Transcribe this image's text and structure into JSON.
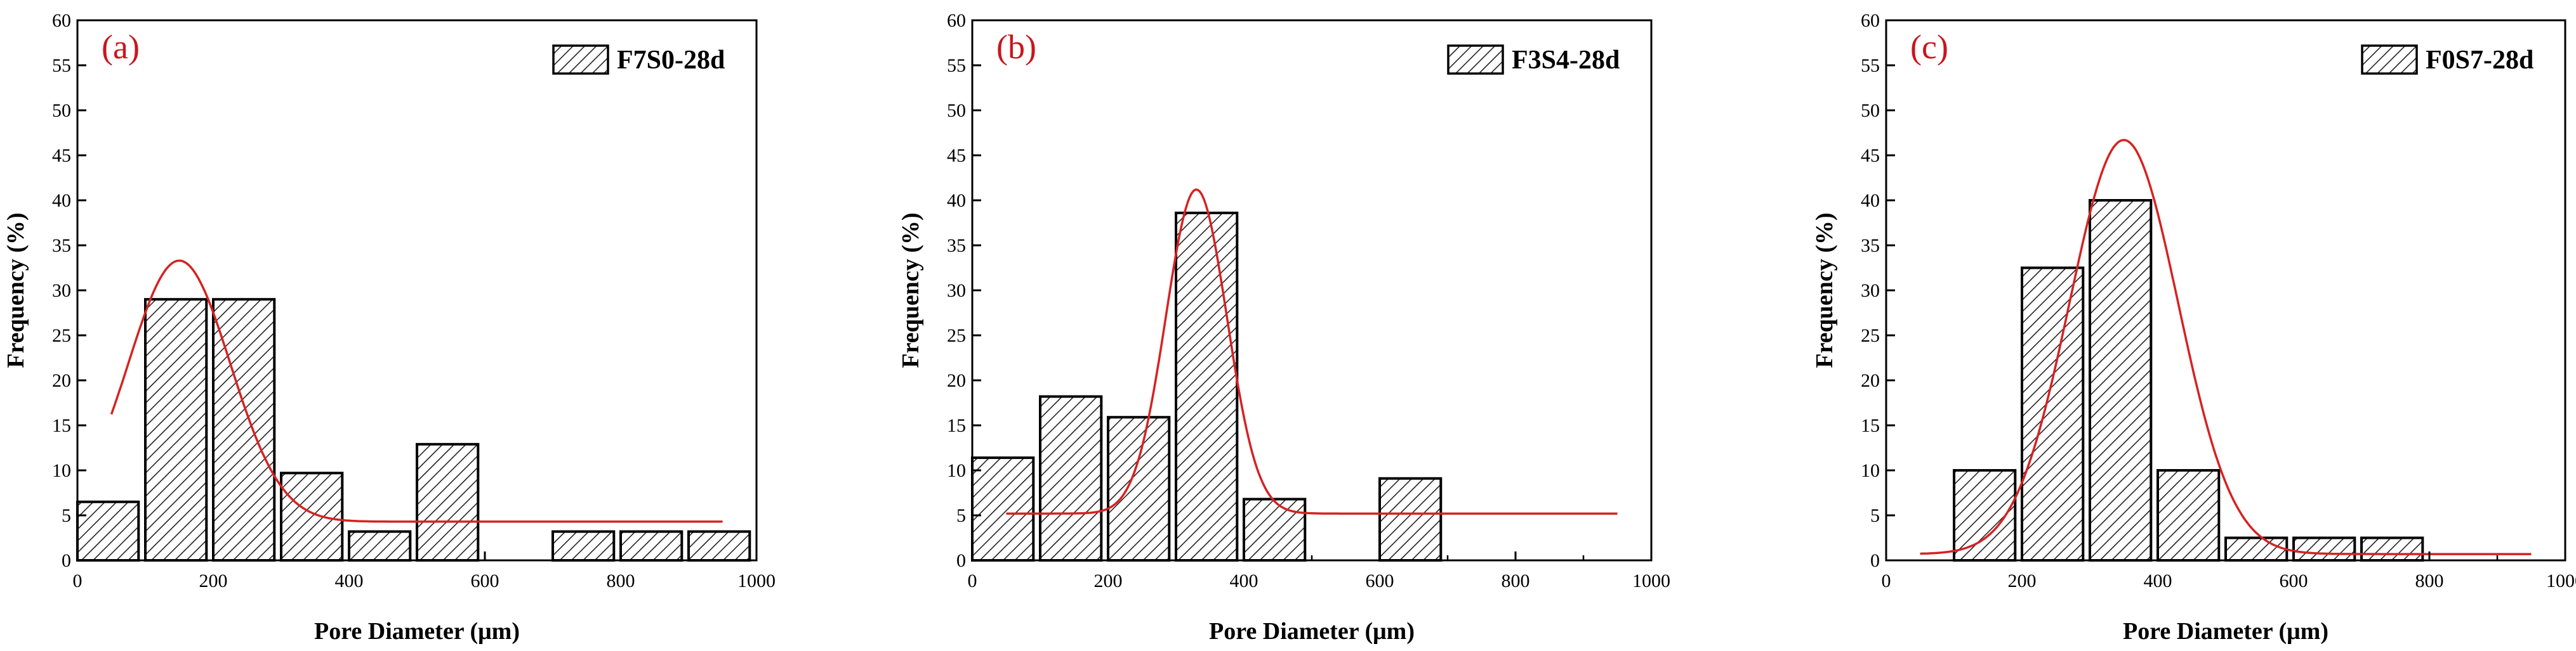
{
  "chart_data": [
    {
      "type": "bar",
      "panel_label": "(a)",
      "legend": "F7S0-28d",
      "xlabel": "Pore Diameter (μm)",
      "ylabel": "Frequency (%)",
      "xlim": [
        0,
        1000
      ],
      "ylim": [
        0,
        60
      ],
      "xticks": [
        0,
        200,
        400,
        600,
        800,
        1000
      ],
      "yticks": [
        0,
        5,
        10,
        15,
        20,
        25,
        30,
        35,
        40,
        45,
        50,
        55,
        60
      ],
      "bins": [
        {
          "start": 0,
          "end": 90,
          "value": 6.5
        },
        {
          "start": 100,
          "end": 190,
          "value": 29.0
        },
        {
          "start": 200,
          "end": 290,
          "value": 29.0
        },
        {
          "start": 300,
          "end": 390,
          "value": 9.7
        },
        {
          "start": 400,
          "end": 490,
          "value": 3.2
        },
        {
          "start": 500,
          "end": 590,
          "value": 12.9
        },
        {
          "start": 700,
          "end": 790,
          "value": 3.2
        },
        {
          "start": 800,
          "end": 890,
          "value": 3.2
        },
        {
          "start": 900,
          "end": 990,
          "value": 3.2
        }
      ],
      "fit": {
        "y0": 4.3,
        "A": 29.0,
        "xc": 150,
        "w": 150,
        "xmin": 50,
        "xmax": 950
      }
    },
    {
      "type": "bar",
      "panel_label": "(b)",
      "legend": "F3S4-28d",
      "xlabel": "Pore Diameter (μm)",
      "ylabel": "Frequency (%)",
      "xlim": [
        0,
        1000
      ],
      "ylim": [
        0,
        60
      ],
      "xticks": [
        0,
        200,
        400,
        600,
        800,
        1000
      ],
      "yticks": [
        0,
        5,
        10,
        15,
        20,
        25,
        30,
        35,
        40,
        45,
        50,
        55,
        60
      ],
      "bins": [
        {
          "start": 0,
          "end": 90,
          "value": 11.4
        },
        {
          "start": 100,
          "end": 190,
          "value": 18.2
        },
        {
          "start": 200,
          "end": 290,
          "value": 15.9
        },
        {
          "start": 300,
          "end": 390,
          "value": 38.6
        },
        {
          "start": 400,
          "end": 490,
          "value": 6.8
        },
        {
          "start": 600,
          "end": 690,
          "value": 9.1
        }
      ],
      "fit": {
        "y0": 5.2,
        "A": 36.0,
        "xc": 330,
        "w": 90,
        "xmin": 50,
        "xmax": 950
      }
    },
    {
      "type": "bar",
      "panel_label": "(c)",
      "legend": "F0S7-28d",
      "xlabel": "Pore Diameter (μm)",
      "ylabel": "Frequency (%)",
      "xlim": [
        0,
        1000
      ],
      "ylim": [
        0,
        60
      ],
      "xticks": [
        0,
        200,
        400,
        600,
        800,
        1000
      ],
      "yticks": [
        0,
        5,
        10,
        15,
        20,
        25,
        30,
        35,
        40,
        45,
        50,
        55,
        60
      ],
      "bins": [
        {
          "start": 100,
          "end": 190,
          "value": 10.0
        },
        {
          "start": 200,
          "end": 290,
          "value": 32.5
        },
        {
          "start": 300,
          "end": 390,
          "value": 40.0
        },
        {
          "start": 400,
          "end": 490,
          "value": 10.0
        },
        {
          "start": 500,
          "end": 590,
          "value": 2.5
        },
        {
          "start": 600,
          "end": 690,
          "value": 2.5
        },
        {
          "start": 700,
          "end": 790,
          "value": 2.5
        }
      ],
      "fit": {
        "y0": 0.7,
        "A": 46.0,
        "xc": 350,
        "w": 160,
        "xmin": 50,
        "xmax": 950
      }
    }
  ],
  "colors": {
    "fit_line": "#d62222",
    "panel_label": "#c8161d",
    "bar_stroke": "#000000",
    "hatch": "#222222"
  }
}
